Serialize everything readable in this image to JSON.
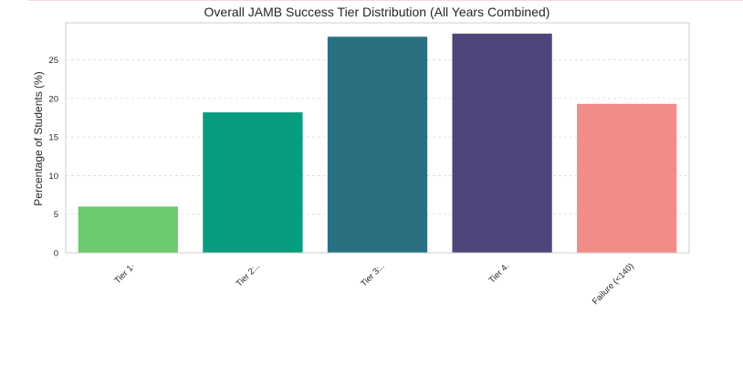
{
  "chart_data": {
    "type": "bar",
    "title": "Overall JAMB Success Tier Distribution (All Years Combined)",
    "xlabel": "",
    "ylabel": "Percentage of Students (%)",
    "categories": [
      "Tier 1·",
      "Tier 2:..",
      "Tier 3:..",
      "Tier 4.",
      "Failure (<140)"
    ],
    "values": [
      6.0,
      18.2,
      28.0,
      28.4,
      19.3
    ],
    "colors": [
      "#6bcb6e",
      "#069d7e",
      "#297180",
      "#50457a",
      "#f28c86"
    ],
    "ylim": [
      0,
      29.8
    ],
    "yticks": [
      0,
      5,
      10,
      15,
      20,
      25
    ],
    "grid": true,
    "grid_axis": "y",
    "legend": "none"
  }
}
